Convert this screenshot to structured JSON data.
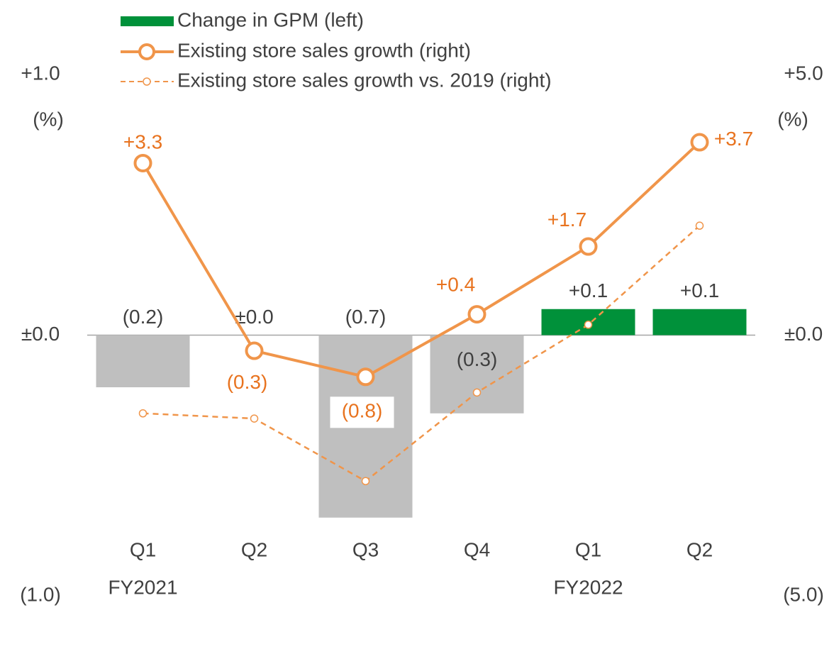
{
  "chart_data": {
    "type": "combo",
    "categories": [
      "Q1",
      "Q2",
      "Q3",
      "Q4",
      "Q1",
      "Q2"
    ],
    "group_labels": [
      "FY2021",
      null,
      null,
      null,
      "FY2022",
      null
    ],
    "ylim": [
      -1,
      1
    ],
    "yticks": [
      {
        "value": 1,
        "label": "+1.0"
      },
      {
        "value": 0,
        "label": "±0.0"
      },
      {
        "value": -1,
        "label": "(1.0)"
      }
    ],
    "y2lim": [
      -5,
      5
    ],
    "y2ticks": [
      {
        "value": 5,
        "label": "+5.0"
      },
      {
        "value": 0,
        "label": "±0.0"
      },
      {
        "value": -5,
        "label": "(5.0)"
      }
    ],
    "ylabel": "(%)",
    "y2label": "(%)",
    "series": [
      {
        "name": "Change in GPM (left)",
        "type": "bar",
        "axis": "y",
        "color": "#00913a",
        "negative_color": "#bfbfbf",
        "values": [
          -0.2,
          0.0,
          -0.7,
          -0.3,
          0.1,
          0.1
        ],
        "value_labels": [
          "(0.2)",
          "±0.0",
          "(0.7)",
          "(0.3)",
          "+0.1",
          "+0.1"
        ]
      },
      {
        "name": "Existing store sales growth (right)",
        "type": "line",
        "axis": "y2",
        "color": "#f0954a",
        "values": [
          3.3,
          -0.3,
          -0.8,
          0.4,
          1.7,
          3.7
        ],
        "value_labels": [
          "+3.3",
          "(0.3)",
          "(0.8)",
          "+0.4",
          "+1.7",
          "+3.7"
        ]
      },
      {
        "name": "Existing store sales growth vs. 2019 (right)",
        "type": "line",
        "dashed": true,
        "axis": "y2",
        "color": "#f0954a",
        "values": [
          -1.5,
          -1.6,
          -2.8,
          -1.1,
          0.2,
          2.1
        ]
      }
    ]
  }
}
